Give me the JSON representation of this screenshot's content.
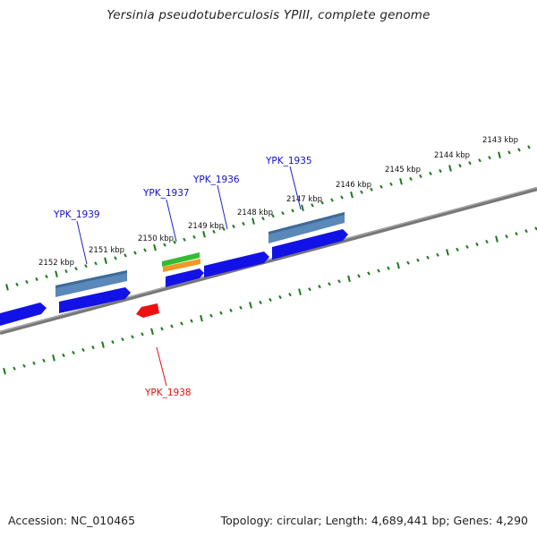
{
  "title": "Yersinia pseudotuberculosis YPIII, complete genome",
  "footer": {
    "accession": "Accession: NC_010465",
    "topology": "Topology: circular; Length: 4,689,441 bp; Genes: 4,290"
  },
  "colors": {
    "backbone": "#7a7a7a",
    "tick": "#1a7a1a",
    "gene_forward": "#1010e0",
    "gene_reverse": "#ee1111",
    "feature_steelblue": "#5a88b8",
    "feature_green": "#33bb33",
    "feature_orange": "#ee9922",
    "label_blue": "#1111cc",
    "label_red": "#dd1111"
  },
  "kbp_labels": [
    "2143 kbp",
    "2144 kbp",
    "2145 kbp",
    "2146 kbp",
    "2147 kbp",
    "2148 kbp",
    "2149 kbp",
    "2150 kbp",
    "2151 kbp",
    "2152 kbp"
  ],
  "gene_labels": [
    {
      "name": "YPK_1935",
      "strand": "forward"
    },
    {
      "name": "YPK_1936",
      "strand": "forward"
    },
    {
      "name": "YPK_1937",
      "strand": "forward"
    },
    {
      "name": "YPK_1938",
      "strand": "reverse"
    },
    {
      "name": "YPK_1939",
      "strand": "forward"
    }
  ]
}
